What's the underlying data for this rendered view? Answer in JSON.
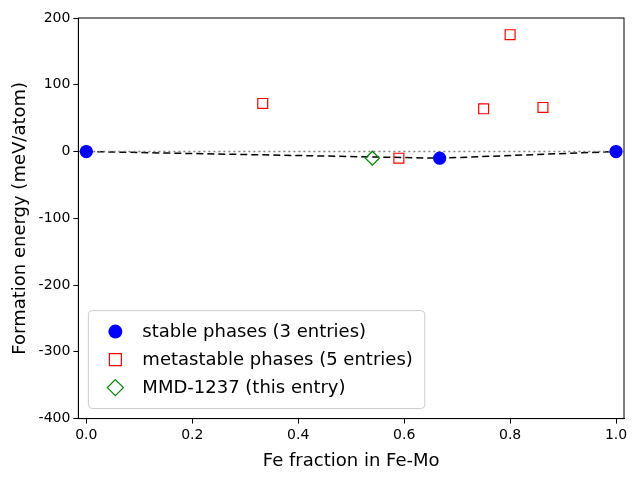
{
  "chart_data": {
    "type": "scatter",
    "x_label": "Fe fraction in Fe-Mo",
    "y_label": "Formation energy (meV/atom)",
    "xlim": [
      -0.015,
      1.015
    ],
    "ylim": [
      -400,
      200
    ],
    "xticks": [
      {
        "value": 0,
        "label": "0.0"
      },
      0.2,
      0.4,
      0.6,
      0.8,
      {
        "value": 1,
        "label": "1.0"
      }
    ],
    "yticks": [
      -400,
      -300,
      -200,
      -100,
      0,
      100,
      200
    ],
    "grid": false,
    "legend": "lower left",
    "series": [
      {
        "x": [
          -0.015,
          1.015
        ],
        "values": [
          0,
          0
        ],
        "color": "#808080",
        "type": "line",
        "line_style": "dotted",
        "marker": "none"
      },
      {
        "x": [
          0,
          0.667,
          1
        ],
        "values": [
          0,
          -10,
          0
        ],
        "color": "#000000",
        "type": "line",
        "line_style": "dashed",
        "marker": "none"
      },
      {
        "name": "stable phases (3 entries)",
        "x": [
          0,
          0.667,
          1
        ],
        "values": [
          0,
          -10,
          0
        ],
        "color": "#0000ff",
        "type": "scatter",
        "marker": "circle"
      },
      {
        "name": "metastable phases (5 entries)",
        "x": [
          0.333,
          0.59,
          0.75,
          0.8,
          0.862
        ],
        "values": [
          72,
          -10,
          64,
          175,
          66
        ],
        "color": "#ff0000",
        "type": "scatter",
        "marker": "open_square"
      },
      {
        "name": "MMD-1237 (this entry)",
        "x": [
          0.54
        ],
        "values": [
          -10
        ],
        "color": "#008000",
        "type": "scatter",
        "marker": "open_diamond"
      }
    ]
  }
}
